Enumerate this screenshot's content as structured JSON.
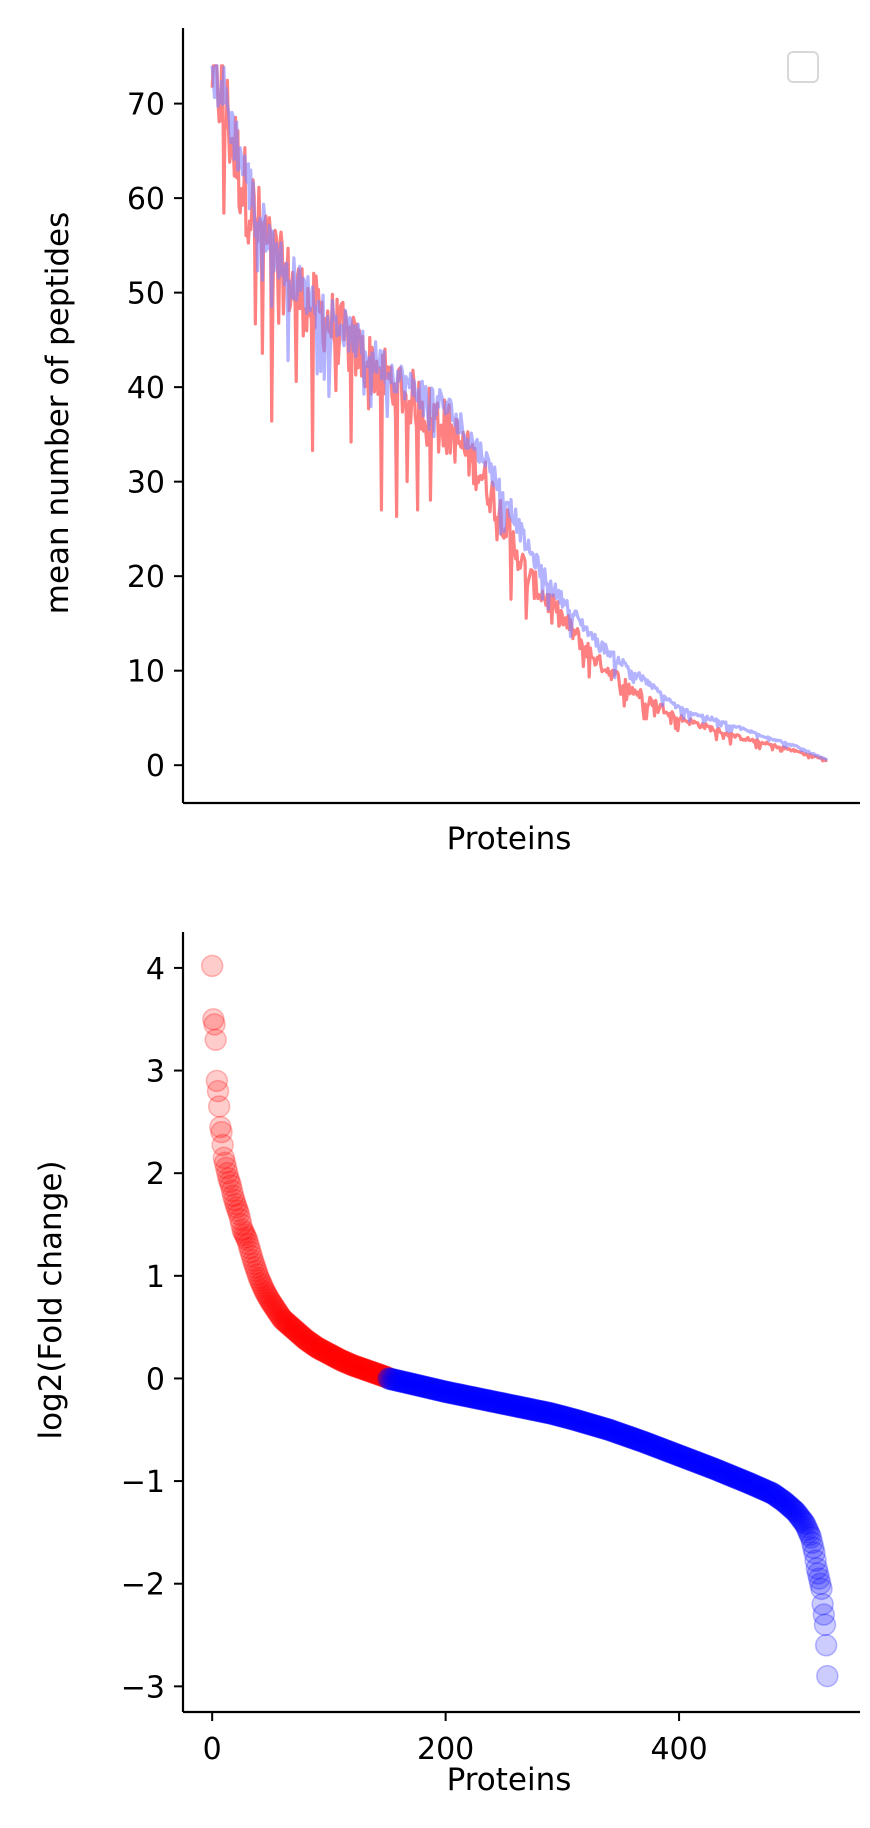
{
  "chart_data": [
    {
      "type": "line",
      "title": "",
      "xlabel": "Proteins",
      "ylabel": "mean number of peptides",
      "x_ticks_visible": false,
      "yticks": [
        0,
        10,
        20,
        30,
        40,
        50,
        60,
        70
      ],
      "xlim": [
        -25,
        555
      ],
      "ylim": [
        -4,
        78
      ],
      "grid": false,
      "legend": {
        "placement": "top-right",
        "entries": []
      },
      "colors": {
        "series_a": "#ff8080",
        "series_b": "#8080ff",
        "overlap": "#7a4fc8"
      },
      "n_points": 528,
      "series": [
        {
          "color": "#ff8080",
          "alpha": 1.0,
          "overall_trend": "sigmoid-like decrease from ~74 to ~0",
          "anchors": [
            [
              0,
              74
            ],
            [
              10,
              70
            ],
            [
              25,
              62
            ],
            [
              40,
              57
            ],
            [
              60,
              52
            ],
            [
              80,
              49
            ],
            [
              100,
              47
            ],
            [
              130,
              43
            ],
            [
              170,
              39
            ],
            [
              200,
              36
            ],
            [
              230,
              31
            ],
            [
              250,
              26
            ],
            [
              270,
              20
            ],
            [
              290,
              17
            ],
            [
              310,
              14
            ],
            [
              330,
              11
            ],
            [
              360,
              8
            ],
            [
              400,
              5
            ],
            [
              450,
              3
            ],
            [
              500,
              1.5
            ],
            [
              528,
              0.5
            ]
          ]
        },
        {
          "color": "#8080ff",
          "alpha": 0.6,
          "overall_trend": "sigmoid-like decrease from ~74 to ~0",
          "anchors": [
            [
              0,
              74
            ],
            [
              10,
              71
            ],
            [
              25,
              64
            ],
            [
              40,
              58
            ],
            [
              60,
              53
            ],
            [
              80,
              50
            ],
            [
              100,
              48
            ],
            [
              130,
              44
            ],
            [
              170,
              40
            ],
            [
              200,
              38
            ],
            [
              230,
              33
            ],
            [
              250,
              29
            ],
            [
              270,
              23
            ],
            [
              290,
              19
            ],
            [
              310,
              16
            ],
            [
              330,
              13
            ],
            [
              360,
              10
            ],
            [
              400,
              6
            ],
            [
              450,
              4
            ],
            [
              500,
              2
            ],
            [
              528,
              0.5
            ]
          ]
        }
      ]
    },
    {
      "type": "scatter",
      "title": "",
      "xlabel": "Proteins",
      "ylabel": "log2(Fold change)",
      "xticks": [
        0,
        200,
        400
      ],
      "xtick_labels": [
        "0",
        "200",
        "400"
      ],
      "yticks": [
        -3,
        -2,
        -1,
        0,
        1,
        2,
        3,
        4
      ],
      "ytick_labels": [
        "−3",
        "−2",
        "−1",
        "0",
        "1",
        "2",
        "3",
        "4"
      ],
      "xlim": [
        -25,
        555
      ],
      "ylim": [
        -3.25,
        4.35
      ],
      "grid": false,
      "n_points": 528,
      "split_index": 150,
      "colors": {
        "positive": "#ff0000",
        "negative": "#0000ff"
      },
      "series": [
        {
          "color": "#ff0000",
          "x_range": [
            0,
            150
          ],
          "anchors": [
            [
              0,
              4.02
            ],
            [
              1,
              3.5
            ],
            [
              2,
              3.45
            ],
            [
              3,
              3.3
            ],
            [
              4,
              2.9
            ],
            [
              5,
              2.8
            ],
            [
              6,
              2.65
            ],
            [
              7,
              2.45
            ],
            [
              8,
              2.4
            ],
            [
              10,
              2.15
            ],
            [
              12,
              2.05
            ],
            [
              14,
              1.95
            ],
            [
              16,
              1.88
            ],
            [
              18,
              1.78
            ],
            [
              20,
              1.7
            ],
            [
              23,
              1.6
            ],
            [
              26,
              1.45
            ],
            [
              30,
              1.35
            ],
            [
              35,
              1.15
            ],
            [
              40,
              0.98
            ],
            [
              45,
              0.85
            ],
            [
              50,
              0.75
            ],
            [
              60,
              0.58
            ],
            [
              70,
              0.48
            ],
            [
              80,
              0.38
            ],
            [
              90,
              0.3
            ],
            [
              100,
              0.24
            ],
            [
              110,
              0.18
            ],
            [
              120,
              0.13
            ],
            [
              130,
              0.09
            ],
            [
              140,
              0.05
            ],
            [
              150,
              0.01
            ]
          ]
        },
        {
          "color": "#0000ff",
          "x_range": [
            151,
            527
          ],
          "anchors": [
            [
              151,
              0.0
            ],
            [
              170,
              -0.05
            ],
            [
              200,
              -0.13
            ],
            [
              230,
              -0.2
            ],
            [
              260,
              -0.27
            ],
            [
              290,
              -0.34
            ],
            [
              310,
              -0.4
            ],
            [
              340,
              -0.5
            ],
            [
              370,
              -0.62
            ],
            [
              400,
              -0.75
            ],
            [
              430,
              -0.88
            ],
            [
              460,
              -1.02
            ],
            [
              480,
              -1.12
            ],
            [
              490,
              -1.2
            ],
            [
              500,
              -1.3
            ],
            [
              508,
              -1.42
            ],
            [
              513,
              -1.55
            ],
            [
              516,
              -1.7
            ],
            [
              518,
              -1.85
            ],
            [
              520,
              -1.95
            ],
            [
              522,
              -2.05
            ],
            [
              523,
              -2.2
            ],
            [
              524,
              -2.3
            ],
            [
              525,
              -2.4
            ],
            [
              526,
              -2.6
            ],
            [
              527,
              -2.9
            ]
          ]
        }
      ]
    }
  ]
}
